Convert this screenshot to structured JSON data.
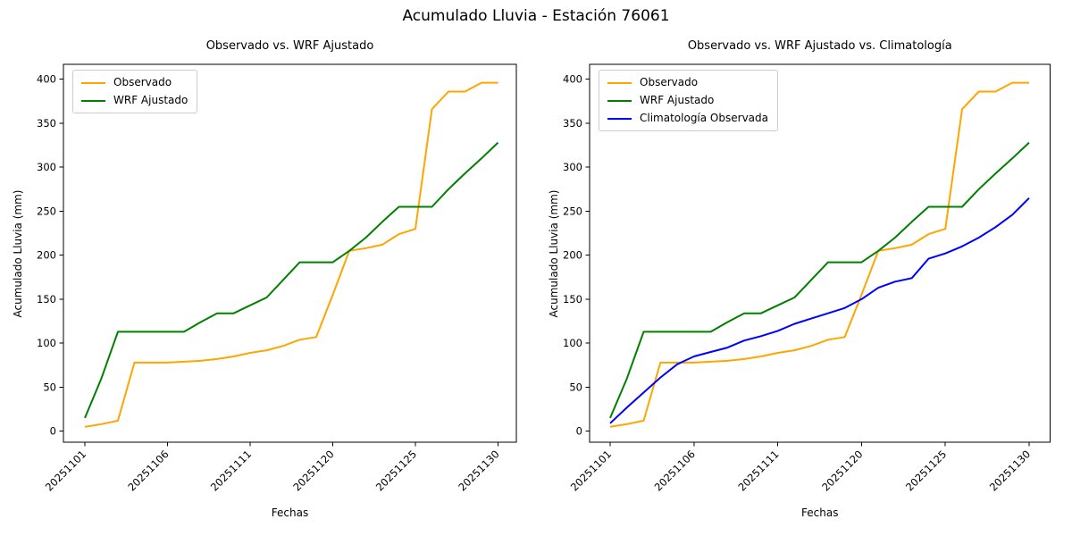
{
  "figure": {
    "suptitle": "Acumulado Lluvia - Estación 76061"
  },
  "chart_data": [
    {
      "type": "line",
      "title": "Observado vs. WRF Ajustado",
      "xlabel": "Fechas",
      "ylabel": "Acumulado Lluvia (mm)",
      "x_tick_labels": [
        "20251101",
        "20251106",
        "20251111",
        "20251120",
        "20251125",
        "20251130"
      ],
      "x_tick_positions": [
        0,
        5,
        10,
        15,
        20,
        25
      ],
      "x_tick_rotation": 45,
      "n_points": 26,
      "y_ticks": [
        0,
        50,
        100,
        150,
        200,
        250,
        300,
        350,
        400
      ],
      "ylim": [
        -20,
        417
      ],
      "grid": false,
      "legend_position": "upper left",
      "series": [
        {
          "name": "Observado",
          "color": "#ffa500",
          "values": [
            5,
            8,
            12,
            78,
            78,
            78,
            79,
            80,
            82,
            85,
            89,
            92,
            97,
            104,
            107,
            155,
            205,
            208,
            212,
            224,
            230,
            366,
            386,
            386,
            396,
            396
          ]
        },
        {
          "name": "WRF Ajustado",
          "color": "#008000",
          "values": [
            15,
            60,
            113,
            113,
            113,
            113,
            113,
            124,
            134,
            134,
            143,
            152,
            172,
            192,
            192,
            192,
            205,
            220,
            238,
            255,
            255,
            255,
            275,
            293,
            310,
            328
          ]
        }
      ]
    },
    {
      "type": "line",
      "title": "Observado vs. WRF Ajustado vs. Climatología",
      "xlabel": "Fechas",
      "ylabel": "Acumulado Lluvia (mm)",
      "x_tick_labels": [
        "20251101",
        "20251106",
        "20251111",
        "20251120",
        "20251125",
        "20251130"
      ],
      "x_tick_positions": [
        0,
        5,
        10,
        15,
        20,
        25
      ],
      "x_tick_rotation": 45,
      "n_points": 26,
      "y_ticks": [
        0,
        50,
        100,
        150,
        200,
        250,
        300,
        350,
        400
      ],
      "ylim": [
        -20,
        417
      ],
      "grid": false,
      "legend_position": "upper left",
      "series": [
        {
          "name": "Observado",
          "color": "#ffa500",
          "values": [
            5,
            8,
            12,
            78,
            78,
            78,
            79,
            80,
            82,
            85,
            89,
            92,
            97,
            104,
            107,
            155,
            205,
            208,
            212,
            224,
            230,
            366,
            386,
            386,
            396,
            396
          ]
        },
        {
          "name": "WRF Ajustado",
          "color": "#008000",
          "values": [
            15,
            60,
            113,
            113,
            113,
            113,
            113,
            124,
            134,
            134,
            143,
            152,
            172,
            192,
            192,
            192,
            205,
            220,
            238,
            255,
            255,
            255,
            275,
            293,
            310,
            328
          ]
        },
        {
          "name": "Climatología Observada",
          "color": "#0000ff",
          "values": [
            9,
            27,
            44,
            61,
            76,
            85,
            90,
            95,
            103,
            108,
            114,
            122,
            128,
            134,
            140,
            150,
            163,
            170,
            174,
            196,
            202,
            210,
            220,
            232,
            246,
            265
          ]
        }
      ]
    }
  ]
}
